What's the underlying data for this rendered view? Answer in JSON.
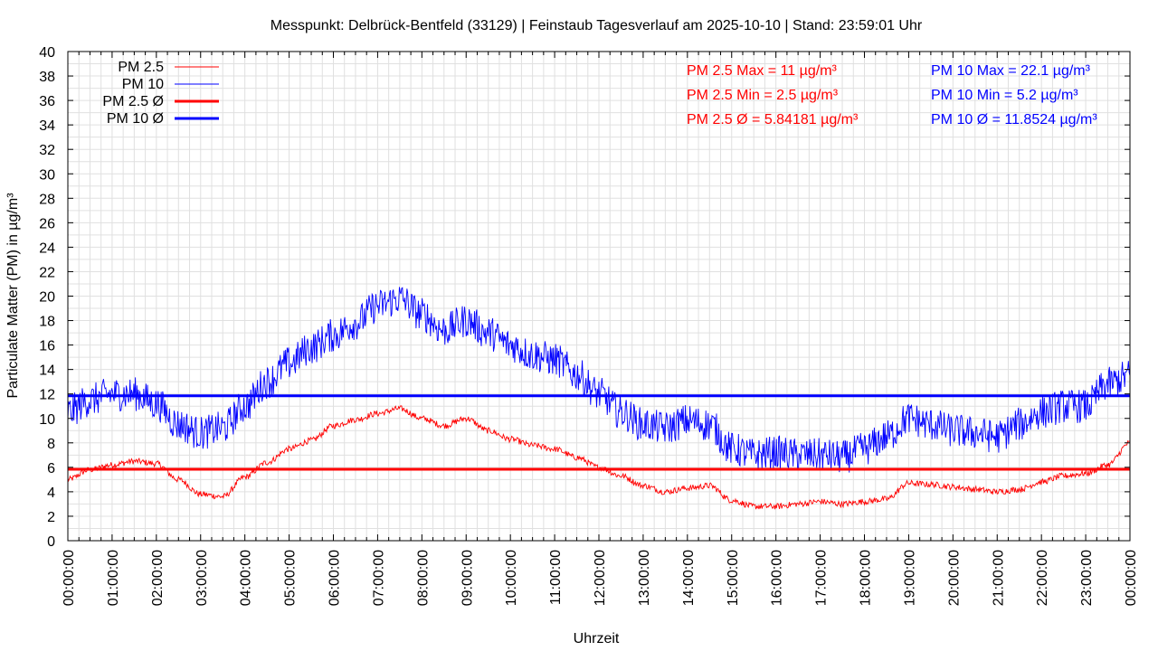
{
  "chart_data": {
    "type": "line",
    "title": "Messpunkt: Delbrück-Bentfeld (33129) | Feinstaub Tagesverlauf am 2025-10-10 | Stand: 23:59:01 Uhr",
    "xlabel": "Uhrzeit",
    "ylabel": "Particulate Matter (PM) in µg/m³",
    "ylim": [
      0,
      40
    ],
    "xlim": [
      "00:00:00",
      "24:00:00"
    ],
    "yticks": [
      "0",
      "2",
      "4",
      "6",
      "8",
      "10",
      "12",
      "14",
      "16",
      "18",
      "20",
      "22",
      "24",
      "26",
      "28",
      "30",
      "32",
      "34",
      "36",
      "38",
      "40"
    ],
    "xticks": [
      "00:00:00",
      "01:00:00",
      "02:00:00",
      "03:00:00",
      "04:00:00",
      "05:00:00",
      "06:00:00",
      "07:00:00",
      "08:00:00",
      "09:00:00",
      "10:00:00",
      "11:00:00",
      "12:00:00",
      "13:00:00",
      "14:00:00",
      "15:00:00",
      "16:00:00",
      "17:00:00",
      "18:00:00",
      "19:00:00",
      "20:00:00",
      "21:00:00",
      "22:00:00",
      "23:00:00",
      "00:00:00"
    ],
    "grid": true,
    "legend_position": "top-left",
    "series": [
      {
        "name": "PM 2.5",
        "color": "#ff0000",
        "x": [
          "00:00",
          "00:30",
          "01:00",
          "01:30",
          "02:00",
          "02:30",
          "03:00",
          "03:30",
          "04:00",
          "04:30",
          "05:00",
          "05:30",
          "06:00",
          "06:30",
          "07:00",
          "07:30",
          "08:00",
          "08:30",
          "09:00",
          "09:30",
          "10:00",
          "10:30",
          "11:00",
          "11:30",
          "12:00",
          "12:30",
          "13:00",
          "13:30",
          "14:00",
          "14:30",
          "15:00",
          "15:30",
          "16:00",
          "16:30",
          "17:00",
          "17:30",
          "18:00",
          "18:30",
          "19:00",
          "19:30",
          "20:00",
          "20:30",
          "21:00",
          "21:30",
          "22:00",
          "22:30",
          "23:00",
          "23:30",
          "24:00"
        ],
        "values": [
          5.0,
          5.8,
          6.2,
          6.5,
          6.3,
          5.0,
          3.8,
          3.6,
          5.2,
          6.4,
          7.5,
          8.2,
          9.4,
          9.9,
          10.4,
          10.8,
          10.0,
          9.4,
          10.0,
          9.0,
          8.3,
          7.8,
          7.5,
          6.8,
          6.0,
          5.3,
          4.5,
          4.0,
          4.3,
          4.5,
          3.3,
          2.8,
          2.8,
          3.0,
          3.2,
          3.0,
          3.2,
          3.4,
          4.7,
          4.6,
          4.4,
          4.2,
          4.0,
          4.2,
          4.8,
          5.3,
          5.5,
          6.2,
          8.0
        ]
      },
      {
        "name": "PM 10",
        "color": "#0000ff",
        "x": [
          "00:00",
          "00:30",
          "01:00",
          "01:30",
          "02:00",
          "02:30",
          "03:00",
          "03:30",
          "04:00",
          "04:30",
          "05:00",
          "05:30",
          "06:00",
          "06:30",
          "07:00",
          "07:30",
          "08:00",
          "08:30",
          "09:00",
          "09:30",
          "10:00",
          "10:30",
          "11:00",
          "11:30",
          "12:00",
          "12:30",
          "13:00",
          "13:30",
          "14:00",
          "14:30",
          "15:00",
          "15:30",
          "16:00",
          "16:30",
          "17:00",
          "17:30",
          "18:00",
          "18:30",
          "19:00",
          "19:30",
          "20:00",
          "20:30",
          "21:00",
          "21:30",
          "22:00",
          "22:30",
          "23:00",
          "23:30",
          "24:00"
        ],
        "values": [
          10.5,
          11.5,
          12.0,
          12.0,
          11.2,
          9.5,
          8.8,
          9.2,
          11.0,
          13.0,
          14.5,
          15.8,
          16.8,
          17.8,
          19.2,
          19.8,
          18.5,
          17.2,
          18.0,
          17.0,
          16.0,
          15.2,
          14.8,
          13.6,
          12.0,
          10.5,
          9.5,
          9.2,
          9.8,
          9.5,
          7.5,
          7.0,
          7.2,
          7.0,
          7.0,
          6.8,
          7.5,
          8.5,
          10.0,
          9.5,
          9.0,
          8.8,
          8.5,
          9.5,
          10.5,
          11.0,
          11.0,
          12.8,
          13.5
        ]
      },
      {
        "name": "PM 2.5 Ø",
        "color": "#ff0000",
        "mean": 5.84181
      },
      {
        "name": "PM 10 Ø",
        "color": "#0000ff",
        "mean": 11.8524
      }
    ],
    "annotations": {
      "pm25_max": "PM 2.5 Max = 11 µg/m³",
      "pm25_min": "PM 2.5 Min = 2.5 µg/m³",
      "pm25_avg": "PM 2.5 Ø = 5.84181 µg/m³",
      "pm10_max": "PM 10 Max = 22.1 µg/m³",
      "pm10_min": "PM 10 Min = 5.2 µg/m³",
      "pm10_avg": "PM 10 Ø = 11.8524 µg/m³"
    }
  }
}
